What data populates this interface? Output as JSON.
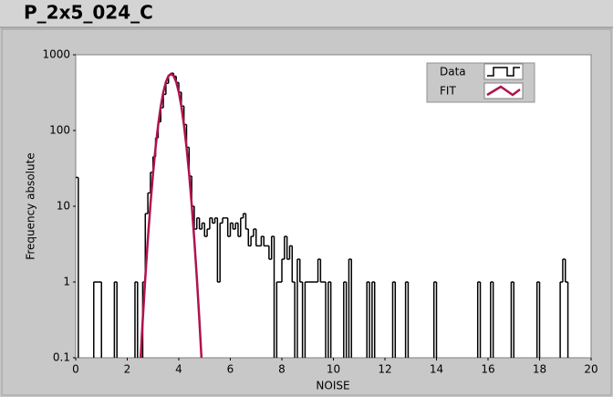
{
  "chart_data": {
    "type": "line",
    "title": "P_2x5_024_C",
    "x_label": "NOISE",
    "y_label": "Frequency absolute",
    "xlim": [
      0,
      20
    ],
    "xticks": [
      0,
      2,
      4,
      6,
      8,
      10,
      12,
      14,
      16,
      18,
      20
    ],
    "ylim": [
      0.1,
      1000
    ],
    "yticks": [
      0.1,
      1,
      10,
      100,
      1000
    ],
    "y_scale": "log",
    "grid": false,
    "legend": "top-right",
    "series": [
      {
        "name": "Data",
        "color": "#000000",
        "step": true,
        "x": [
          0,
          0.1,
          0.7,
          1.0,
          1.5,
          1.6,
          2.3,
          2.4,
          2.6,
          2.7,
          2.8,
          2.9,
          3.0,
          3.1,
          3.2,
          3.3,
          3.4,
          3.5,
          3.6,
          3.7,
          3.8,
          3.9,
          4.0,
          4.1,
          4.2,
          4.3,
          4.4,
          4.5,
          4.6,
          4.7,
          4.8,
          4.9,
          5.0,
          5.1,
          5.2,
          5.3,
          5.4,
          5.5,
          5.6,
          5.7,
          5.8,
          5.9,
          6.0,
          6.1,
          6.2,
          6.3,
          6.4,
          6.5,
          6.6,
          6.7,
          6.8,
          6.9,
          7.0,
          7.1,
          7.2,
          7.3,
          7.4,
          7.5,
          7.6,
          7.7,
          7.8,
          8.0,
          8.1,
          8.2,
          8.3,
          8.4,
          8.5,
          8.6,
          8.7,
          8.8,
          8.9,
          9.4,
          9.5,
          9.7,
          9.8,
          9.9,
          10.4,
          10.5,
          10.6,
          10.7,
          11.3,
          11.4,
          11.5,
          11.6,
          12.3,
          12.4,
          12.8,
          12.9,
          13.9,
          14.0,
          15.6,
          15.7,
          16.1,
          16.2,
          16.9,
          17.0,
          17.9,
          18.0,
          18.8,
          18.9,
          19.0,
          19.1
        ],
        "values": [
          24,
          0,
          1,
          0,
          1,
          0,
          1,
          0,
          1,
          8,
          15,
          28,
          45,
          80,
          130,
          200,
          300,
          420,
          540,
          570,
          520,
          430,
          320,
          210,
          120,
          60,
          25,
          10,
          5,
          7,
          5,
          6,
          4,
          5,
          7,
          6,
          7,
          1,
          6,
          7,
          7,
          4,
          6,
          5,
          6,
          4,
          7,
          8,
          5,
          3,
          4,
          5,
          3,
          3,
          4,
          3,
          3,
          2,
          4,
          0,
          1,
          2,
          4,
          2,
          3,
          1,
          0,
          2,
          1,
          0,
          1,
          2,
          1,
          0,
          1,
          0,
          1,
          0,
          2,
          0,
          1,
          0,
          1,
          0,
          1,
          0,
          1,
          0,
          1,
          0,
          1,
          0,
          1,
          0,
          1,
          0,
          1,
          0,
          1,
          2,
          1,
          0
        ]
      },
      {
        "name": "FIT",
        "color": "#b0124e",
        "x": [
          2.5,
          2.6,
          2.7,
          2.8,
          2.9,
          3.0,
          3.1,
          3.2,
          3.3,
          3.4,
          3.5,
          3.6,
          3.7,
          3.8,
          3.9,
          4.0,
          4.1,
          4.2,
          4.3,
          4.4,
          4.5,
          4.6,
          4.7,
          4.8,
          4.9
        ],
        "values": [
          0.075,
          0.31,
          1.14,
          3.7,
          10.6,
          27,
          60,
          119,
          208,
          321,
          437,
          526,
          560,
          526,
          437,
          321,
          208,
          119,
          60,
          27,
          10.6,
          3.7,
          1.14,
          0.31,
          0.075
        ]
      }
    ]
  }
}
